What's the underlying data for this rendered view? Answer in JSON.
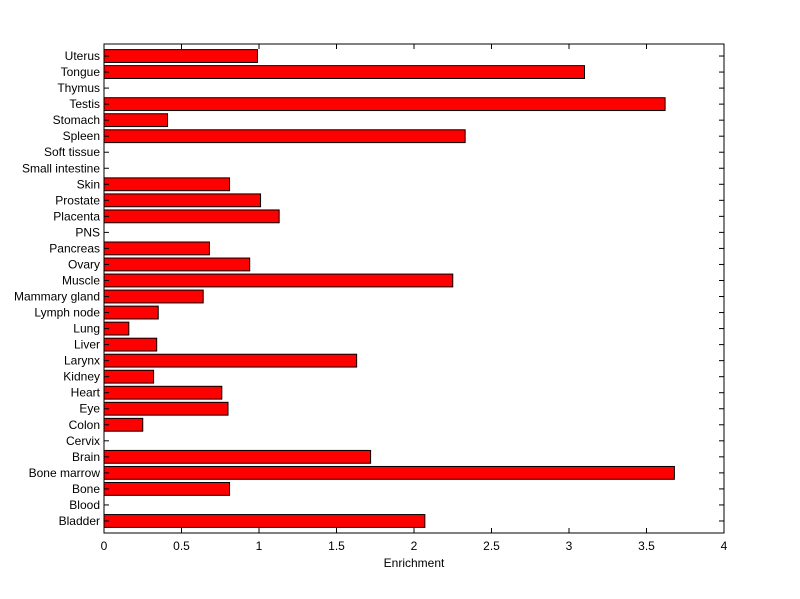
{
  "chart_data": {
    "type": "bar",
    "orientation": "horizontal",
    "xlabel": "Enrichment",
    "xlim": [
      0,
      4
    ],
    "xticks": [
      0,
      0.5,
      1,
      1.5,
      2,
      2.5,
      3,
      3.5,
      4
    ],
    "xtick_labels": [
      "0",
      "0.5",
      "1",
      "1.5",
      "2",
      "2.5",
      "3",
      "3.5",
      "4"
    ],
    "categories": [
      "Uterus",
      "Tongue",
      "Thymus",
      "Testis",
      "Stomach",
      "Spleen",
      "Soft tissue",
      "Small intestine",
      "Skin",
      "Prostate",
      "Placenta",
      "PNS",
      "Pancreas",
      "Ovary",
      "Muscle",
      "Mammary gland",
      "Lymph node",
      "Lung",
      "Liver",
      "Larynx",
      "Kidney",
      "Heart",
      "Eye",
      "Colon",
      "Cervix",
      "Brain",
      "Bone marrow",
      "Bone",
      "Blood",
      "Bladder"
    ],
    "values": [
      0.99,
      3.1,
      0,
      3.62,
      0.41,
      2.33,
      0,
      0,
      0.81,
      1.01,
      1.13,
      0,
      0.68,
      0.94,
      2.25,
      0.64,
      0.35,
      0.16,
      0.34,
      1.63,
      0.32,
      0.76,
      0.8,
      0.25,
      0,
      1.72,
      3.68,
      0.81,
      0,
      2.07
    ],
    "bar_color": "#ff0000",
    "bar_edge_color": "#000000",
    "grid": false
  }
}
